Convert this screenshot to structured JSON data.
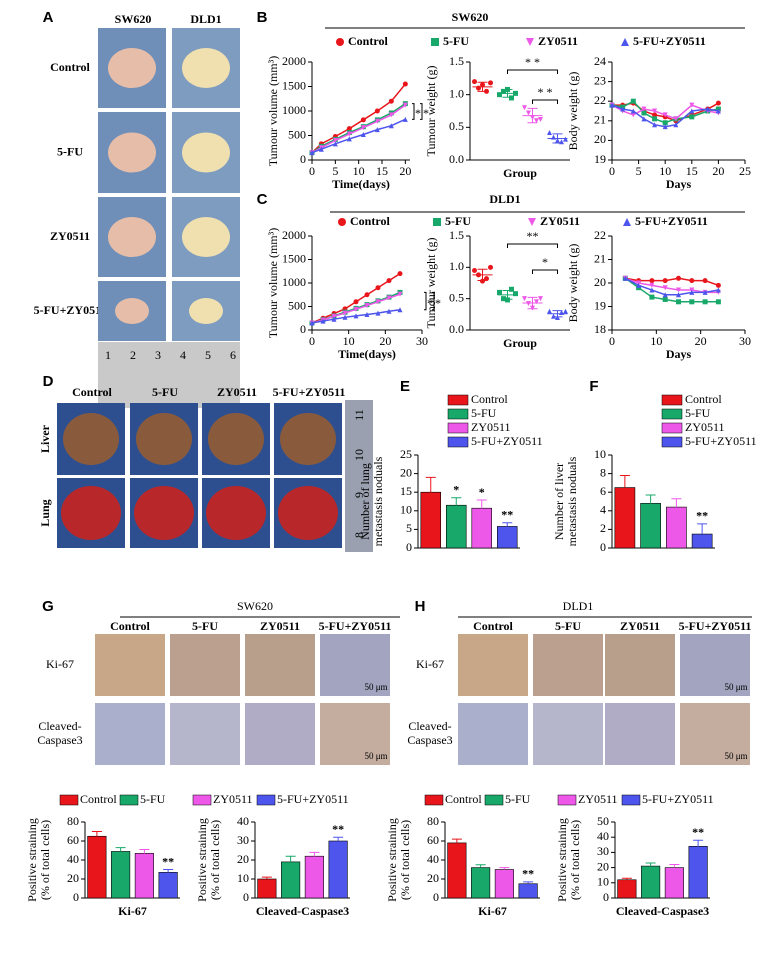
{
  "panels": {
    "A": {
      "letter": "A",
      "columns": [
        "SW620",
        "DLD1"
      ],
      "rows": [
        "Control",
        "5-FU",
        "ZY0511",
        "5-FU+ZY0511"
      ],
      "ruler": [
        "1",
        "2",
        "3",
        "4",
        "5",
        "6"
      ]
    },
    "B": {
      "letter": "B",
      "title": "SW620"
    },
    "C": {
      "letter": "C",
      "title": "DLD1"
    },
    "D": {
      "letter": "D",
      "columns": [
        "Control",
        "5-FU",
        "ZY0511",
        "5-FU+ZY0511"
      ],
      "rows": [
        "Liver",
        "Lung"
      ],
      "ruler": [
        "11",
        "10",
        "9",
        "8"
      ]
    },
    "E": {
      "letter": "E"
    },
    "F": {
      "letter": "F"
    },
    "G": {
      "letter": "G",
      "title": "SW620",
      "columns": [
        "Control",
        "5-FU",
        "ZY0511",
        "5-FU+ZY0511"
      ],
      "rows": [
        [
          "Ki-67"
        ],
        [
          "Cleaved-",
          "Caspase3"
        ]
      ],
      "scale": "50 μm"
    },
    "H": {
      "letter": "H",
      "title": "DLD1",
      "columns": [
        "Control",
        "5-FU",
        "ZY0511",
        "5-FU+ZY0511"
      ],
      "rows": [
        [
          "Ki-67"
        ],
        [
          "Cleaved-",
          "Caspase3"
        ]
      ],
      "scale": "50 μm"
    }
  },
  "chart_data": [
    {
      "type": "line",
      "xlabel": "Time(days)",
      "ylabel": "Tumour volume (mm³)",
      "x": [
        0,
        2,
        5,
        8,
        11,
        14,
        17,
        20
      ],
      "xlim": [
        0,
        21
      ],
      "xticks": [
        0,
        5,
        10,
        15,
        20
      ],
      "ylim": [
        0,
        2000
      ],
      "yticks": [
        0,
        500,
        1000,
        1500,
        2000
      ],
      "series": [
        {
          "name": "Control",
          "color": "#e8151b",
          "marker": "circle",
          "values": [
            150,
            330,
            480,
            640,
            820,
            1000,
            1200,
            1550
          ]
        },
        {
          "name": "5-FU",
          "color": "#17a86a",
          "marker": "square",
          "values": [
            150,
            280,
            420,
            560,
            680,
            820,
            960,
            1150
          ]
        },
        {
          "name": "ZY0511",
          "color": "#ee58e8",
          "marker": "down",
          "values": [
            150,
            250,
            400,
            530,
            660,
            790,
            920,
            1120
          ]
        },
        {
          "name": "5-FU+ZY0511",
          "color": "#4d55ec",
          "marker": "up",
          "values": [
            150,
            220,
            330,
            430,
            520,
            620,
            700,
            830
          ]
        }
      ],
      "annotations": [
        "*",
        "*"
      ]
    },
    {
      "type": "dot",
      "xlabel": "Group",
      "ylabel": "Tumour weight (g)",
      "ylim": [
        0,
        1.5
      ],
      "yticks": [
        {
          "value": 0,
          "label": "0.0"
        },
        {
          "value": 0.5,
          "label": "0.5"
        },
        {
          "value": 1,
          "label": "1.0"
        },
        {
          "value": 1.5,
          "label": "1.5"
        }
      ],
      "colors": [
        "#e8151b",
        "#17a86a",
        "#ee58e8",
        "#4d55ec"
      ],
      "markers": [
        "circle",
        "square",
        "down",
        "up"
      ],
      "values": [
        1.12,
        1.02,
        0.68,
        0.33
      ],
      "errors": [
        0.07,
        0.06,
        0.11,
        0.07
      ],
      "points": [
        [
          1.2,
          1.1,
          1.15,
          1.05,
          1.18
        ],
        [
          1.0,
          1.05,
          1.08,
          0.95,
          1.02
        ],
        [
          0.8,
          0.72,
          0.65,
          0.6,
          0.62
        ],
        [
          0.42,
          0.35,
          0.3,
          0.28,
          0.32
        ]
      ],
      "annotations": [
        "* *",
        "* *"
      ]
    },
    {
      "type": "line",
      "xlabel": "Days",
      "ylabel": "Body weight (g)",
      "x": [
        0,
        2,
        4,
        6,
        8,
        10,
        12,
        15,
        18,
        20
      ],
      "xlim": [
        0,
        25
      ],
      "xticks": [
        0,
        5,
        10,
        15,
        20,
        25
      ],
      "ylim": [
        19,
        24
      ],
      "yticks": [
        19,
        20,
        21,
        22,
        23,
        24
      ],
      "series": [
        {
          "color": "#e8151b",
          "marker": "circle",
          "values": [
            21.8,
            21.8,
            21.9,
            21.5,
            21.3,
            21.2,
            21.0,
            21.3,
            21.6,
            21.9
          ]
        },
        {
          "color": "#17a86a",
          "marker": "square",
          "values": [
            21.8,
            21.7,
            22.0,
            21.4,
            21.1,
            20.9,
            21.1,
            21.2,
            21.5,
            21.6
          ]
        },
        {
          "color": "#ee58e8",
          "marker": "down",
          "values": [
            21.8,
            21.5,
            21.3,
            21.6,
            21.5,
            21.3,
            21.1,
            21.8,
            21.5,
            21.4
          ]
        },
        {
          "color": "#4d55ec",
          "marker": "up",
          "values": [
            21.8,
            21.6,
            21.5,
            21.1,
            20.8,
            20.7,
            20.8,
            21.5,
            21.6,
            21.5
          ]
        }
      ]
    },
    {
      "type": "line",
      "xlabel": "Time(days)",
      "ylabel": "Tumour volume (mm³)",
      "x": [
        0,
        3,
        6,
        9,
        12,
        15,
        18,
        21,
        24
      ],
      "xlim": [
        0,
        30
      ],
      "xticks": [
        0,
        10,
        20,
        30
      ],
      "ylim": [
        0,
        2000
      ],
      "yticks": [
        0,
        500,
        1000,
        1500,
        2000
      ],
      "series": [
        {
          "name": "Control",
          "color": "#e8151b",
          "marker": "circle",
          "values": [
            150,
            250,
            350,
            450,
            600,
            750,
            900,
            1050,
            1200
          ]
        },
        {
          "name": "5-FU",
          "color": "#17a86a",
          "marker": "square",
          "values": [
            150,
            220,
            300,
            380,
            460,
            540,
            620,
            700,
            800
          ]
        },
        {
          "name": "ZY0511",
          "color": "#ee58e8",
          "marker": "down",
          "values": [
            150,
            210,
            290,
            360,
            440,
            520,
            600,
            680,
            760
          ]
        },
        {
          "name": "5-FU+ZY0511",
          "color": "#4d55ec",
          "marker": "up",
          "values": [
            150,
            190,
            230,
            270,
            300,
            330,
            360,
            400,
            430
          ]
        }
      ],
      "annotations": [
        "*",
        "*"
      ]
    },
    {
      "type": "dot",
      "xlabel": "Group",
      "ylabel": "Tumour weight (g)",
      "ylim": [
        0,
        1.5
      ],
      "yticks": [
        {
          "value": 0,
          "label": "0.0"
        },
        {
          "value": 0.5,
          "label": "0.5"
        },
        {
          "value": 1,
          "label": "1.0"
        },
        {
          "value": 1.5,
          "label": "1.5"
        }
      ],
      "colors": [
        "#e8151b",
        "#17a86a",
        "#ee58e8",
        "#4d55ec"
      ],
      "markers": [
        "circle",
        "square",
        "down",
        "up"
      ],
      "values": [
        0.88,
        0.56,
        0.43,
        0.26
      ],
      "errors": [
        0.09,
        0.07,
        0.09,
        0.05
      ],
      "points": [
        [
          0.95,
          0.88,
          0.78,
          0.82,
          1.0
        ],
        [
          0.6,
          0.5,
          0.48,
          0.65,
          0.58
        ],
        [
          0.5,
          0.42,
          0.35,
          0.45,
          0.5
        ],
        [
          0.3,
          0.22,
          0.2,
          0.28,
          0.3
        ]
      ],
      "annotations": [
        "**",
        "*"
      ]
    },
    {
      "type": "line",
      "xlabel": "Days",
      "ylabel": "Body weight (g)",
      "x": [
        3,
        6,
        9,
        12,
        15,
        18,
        21,
        24
      ],
      "xlim": [
        0,
        30
      ],
      "xticks": [
        0,
        10,
        20,
        30
      ],
      "ylim": [
        18,
        22
      ],
      "yticks": [
        18,
        19,
        20,
        21,
        22
      ],
      "series": [
        {
          "color": "#e8151b",
          "marker": "circle",
          "values": [
            20.2,
            20.1,
            20.1,
            20.1,
            20.2,
            20.1,
            20.1,
            19.9
          ]
        },
        {
          "color": "#17a86a",
          "marker": "square",
          "values": [
            20.2,
            19.8,
            19.4,
            19.3,
            19.2,
            19.2,
            19.2,
            19.2
          ]
        },
        {
          "color": "#ee58e8",
          "marker": "down",
          "values": [
            20.2,
            20.0,
            19.9,
            19.8,
            19.7,
            19.7,
            19.6,
            19.6
          ]
        },
        {
          "color": "#4d55ec",
          "marker": "up",
          "values": [
            20.2,
            19.9,
            19.7,
            19.5,
            19.5,
            19.6,
            19.6,
            19.7
          ]
        }
      ]
    },
    {
      "type": "bar",
      "ylabel": [
        "Number of lung",
        "metastasis noduals"
      ],
      "categories": [
        "Control",
        "5-FU",
        "ZY0511",
        "5-FU+ZY0511"
      ],
      "colors": [
        "#e8151b",
        "#17a86a",
        "#ee58e8",
        "#4d55ec"
      ],
      "values": [
        15,
        11.5,
        10.7,
        5.8
      ],
      "errors": [
        4,
        2,
        2.2,
        1
      ],
      "annotations": [
        null,
        "*",
        "*",
        "**"
      ],
      "ylim": [
        0,
        25
      ],
      "yticks": [
        0,
        5,
        10,
        15,
        20,
        25
      ]
    },
    {
      "type": "bar",
      "ylabel": [
        "Number of liver",
        "metastasis noduals"
      ],
      "categories": [
        "Control",
        "5-FU",
        "ZY0511",
        "5-FU+ZY0511"
      ],
      "colors": [
        "#e8151b",
        "#17a86a",
        "#ee58e8",
        "#4d55ec"
      ],
      "values": [
        6.5,
        4.8,
        4.4,
        1.5
      ],
      "errors": [
        1.3,
        0.9,
        0.9,
        1.1
      ],
      "annotations": [
        null,
        null,
        null,
        "**"
      ],
      "ylim": [
        0,
        10
      ],
      "yticks": [
        0,
        2,
        4,
        6,
        8,
        10
      ]
    },
    {
      "type": "bar",
      "xlabel": "Ki-67",
      "ylabel": [
        "Positive straining",
        "(% of total cells)"
      ],
      "categories": [
        "Control",
        "5-FU",
        "ZY0511",
        "5-FU+ZY0511"
      ],
      "colors": [
        "#e8151b",
        "#17a86a",
        "#ee58e8",
        "#4d55ec"
      ],
      "values": [
        65,
        49,
        47,
        27
      ],
      "errors": [
        5,
        4,
        4,
        3
      ],
      "annotations": [
        null,
        null,
        null,
        "**"
      ],
      "ylim": [
        0,
        80
      ],
      "yticks": [
        0,
        20,
        40,
        60,
        80
      ]
    },
    {
      "type": "bar",
      "xlabel": "Cleaved-Caspase3",
      "ylabel": [
        "Positive straining",
        "(% of total cells)"
      ],
      "colors": [
        "#e8151b",
        "#17a86a",
        "#ee58e8",
        "#4d55ec"
      ],
      "values": [
        10,
        19,
        22,
        30
      ],
      "errors": [
        1,
        3,
        2,
        2
      ],
      "annotations": [
        null,
        null,
        null,
        "**"
      ],
      "ylim": [
        0,
        40
      ],
      "yticks": [
        0,
        10,
        20,
        30,
        40
      ]
    },
    {
      "type": "bar",
      "xlabel": "Ki-67",
      "ylabel": [
        "Positive straining",
        "(% of total cells)"
      ],
      "categories": [
        "Control",
        "5-FU",
        "ZY0511",
        "5-FU+ZY0511"
      ],
      "colors": [
        "#e8151b",
        "#17a86a",
        "#ee58e8",
        "#4d55ec"
      ],
      "values": [
        58,
        32,
        30,
        15
      ],
      "errors": [
        4,
        3,
        2,
        2
      ],
      "annotations": [
        null,
        null,
        null,
        "**"
      ],
      "ylim": [
        0,
        80
      ],
      "yticks": [
        0,
        20,
        40,
        60,
        80
      ]
    },
    {
      "type": "bar",
      "xlabel": "Cleaved-Caspase3",
      "ylabel": [
        "Positive straining",
        "(% of total cells)"
      ],
      "colors": [
        "#e8151b",
        "#17a86a",
        "#ee58e8",
        "#4d55ec"
      ],
      "values": [
        12,
        21,
        20,
        34
      ],
      "errors": [
        1,
        2,
        2,
        4
      ],
      "annotations": [
        null,
        null,
        null,
        "**"
      ],
      "ylim": [
        0,
        50
      ],
      "yticks": [
        0,
        10,
        20,
        30,
        40,
        50
      ]
    }
  ]
}
